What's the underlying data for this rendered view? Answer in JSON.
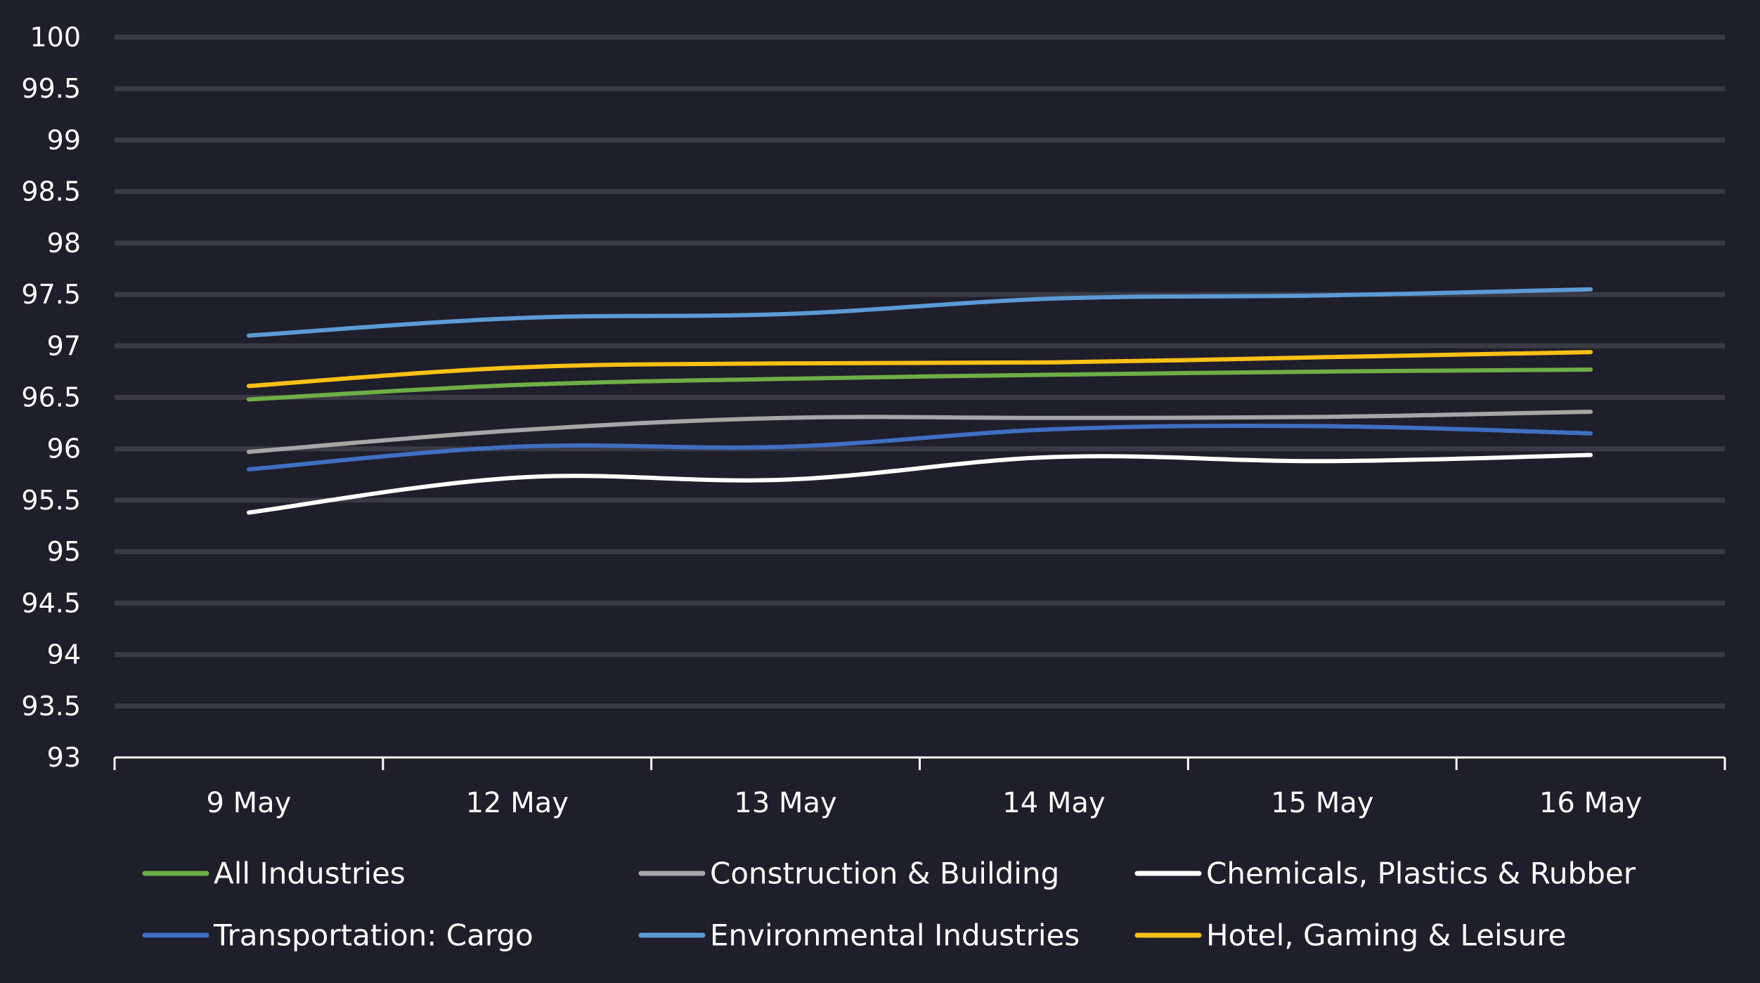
{
  "chart_data": {
    "type": "line",
    "title": "",
    "xlabel": "",
    "ylabel": "",
    "categories": [
      "9 May",
      "12 May",
      "13 May",
      "14 May",
      "15 May",
      "16 May"
    ],
    "yticks": [
      "93",
      "93.5",
      "94",
      "94.5",
      "95",
      "95.5",
      "96",
      "96.5",
      "97",
      "97.5",
      "98",
      "98.5",
      "99",
      "99.5",
      "100"
    ],
    "ylim": [
      93,
      100
    ],
    "grid": true,
    "legend_position": "bottom",
    "series": [
      {
        "name": "All Industries",
        "color": "#6fae45",
        "values": [
          96.48,
          96.62,
          96.68,
          96.72,
          96.75,
          96.77
        ]
      },
      {
        "name": "Construction & Building",
        "color": "#a6a6a6",
        "values": [
          95.97,
          96.18,
          96.3,
          96.3,
          96.31,
          96.36
        ]
      },
      {
        "name": "Chemicals, Plastics & Rubber",
        "color": "#ffffff",
        "values": [
          95.38,
          95.72,
          95.7,
          95.92,
          95.88,
          95.94
        ]
      },
      {
        "name": "Transportation: Cargo",
        "color": "#3f6fc3",
        "values": [
          95.8,
          96.02,
          96.02,
          96.19,
          96.22,
          96.15
        ]
      },
      {
        "name": "Environmental Industries",
        "color": "#5b9bd5",
        "values": [
          97.1,
          97.27,
          97.31,
          97.46,
          97.49,
          97.55
        ]
      },
      {
        "name": "Hotel, Gaming & Leisure",
        "color": "#fdc015",
        "values": [
          96.61,
          96.79,
          96.83,
          96.84,
          96.89,
          96.94
        ]
      }
    ]
  }
}
